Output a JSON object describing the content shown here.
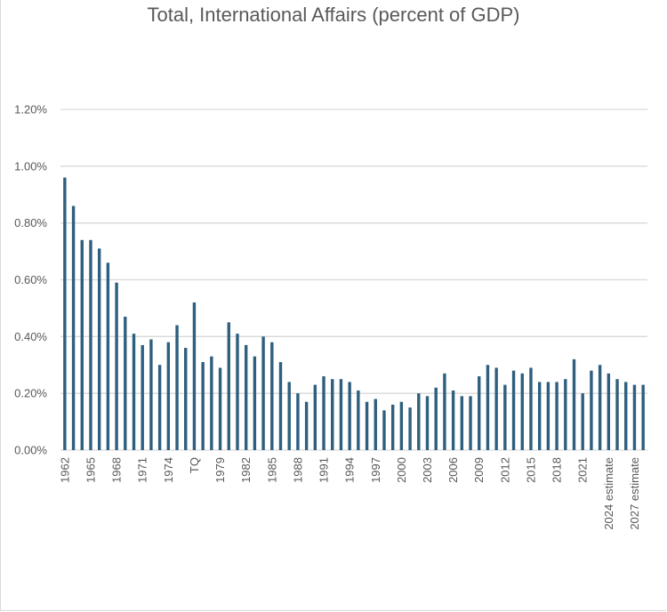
{
  "chart_data": {
    "type": "bar",
    "title": "Total, International Affairs (percent of GDP)",
    "xlabel": "",
    "ylabel": "",
    "ylim": [
      0,
      1.2
    ],
    "yticks": [
      "0.00%",
      "0.20%",
      "0.40%",
      "0.60%",
      "0.80%",
      "1.00%",
      "1.20%"
    ],
    "grid": true,
    "color": "#2e5f7e",
    "categories": [
      "1962",
      "1963",
      "1964",
      "1965",
      "1966",
      "1967",
      "1968",
      "1969",
      "1970",
      "1971",
      "1972",
      "1973",
      "1974",
      "1975",
      "1976",
      "TQ",
      "1977",
      "1978",
      "1979",
      "1980",
      "1981",
      "1982",
      "1983",
      "1984",
      "1985",
      "1986",
      "1987",
      "1988",
      "1989",
      "1990",
      "1991",
      "1992",
      "1993",
      "1994",
      "1995",
      "1996",
      "1997",
      "1998",
      "1999",
      "2000",
      "2001",
      "2002",
      "2003",
      "2004",
      "2005",
      "2006",
      "2007",
      "2008",
      "2009",
      "2010",
      "2011",
      "2012",
      "2013",
      "2014",
      "2015",
      "2016",
      "2017",
      "2018",
      "2019",
      "2020",
      "2021",
      "2022",
      "2023",
      "2024 estimate",
      "2025 estimate",
      "2026 estimate",
      "2027 estimate",
      "2028 estimate"
    ],
    "values": [
      0.96,
      0.86,
      0.74,
      0.74,
      0.71,
      0.66,
      0.59,
      0.47,
      0.41,
      0.37,
      0.39,
      0.3,
      0.38,
      0.44,
      0.36,
      0.52,
      0.31,
      0.33,
      0.29,
      0.45,
      0.41,
      0.37,
      0.33,
      0.4,
      0.38,
      0.31,
      0.24,
      0.2,
      0.17,
      0.23,
      0.26,
      0.25,
      0.25,
      0.24,
      0.21,
      0.17,
      0.18,
      0.14,
      0.16,
      0.17,
      0.15,
      0.2,
      0.19,
      0.22,
      0.27,
      0.21,
      0.19,
      0.19,
      0.26,
      0.3,
      0.29,
      0.23,
      0.28,
      0.27,
      0.29,
      0.24,
      0.24,
      0.24,
      0.25,
      0.32,
      0.2,
      0.28,
      0.3,
      0.27,
      0.25,
      0.24,
      0.23,
      0.23
    ],
    "label_every": 3
  }
}
